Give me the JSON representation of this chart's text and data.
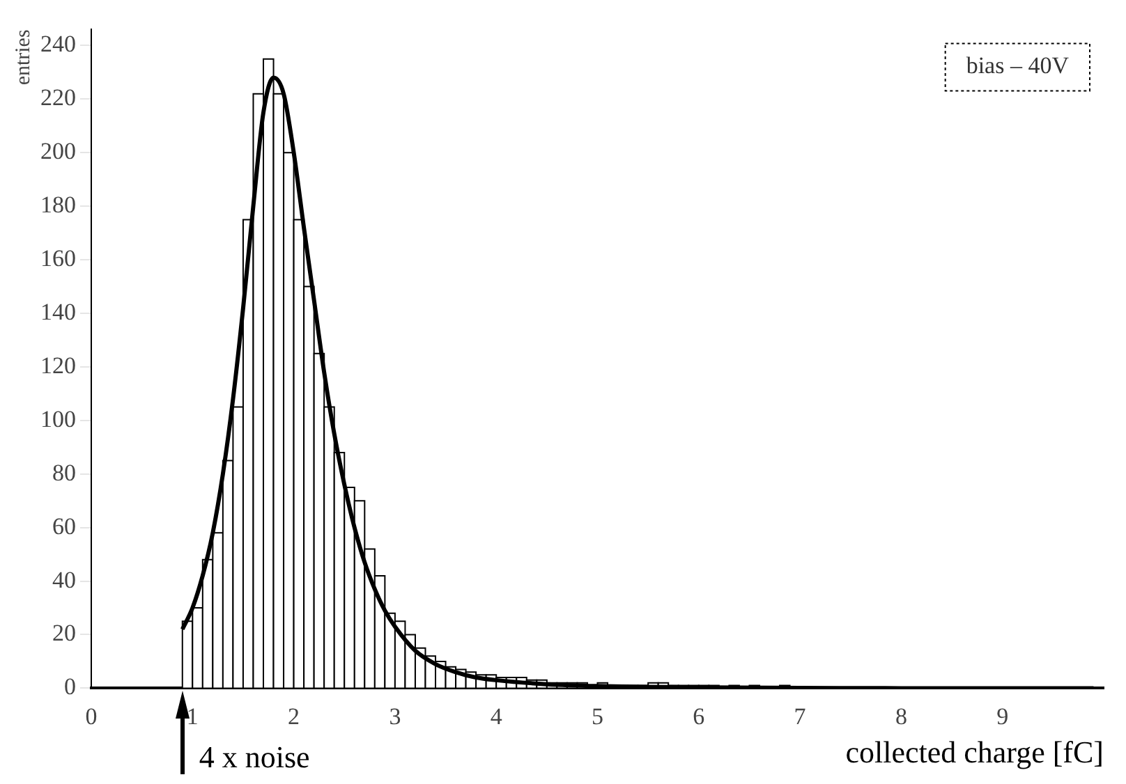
{
  "chart_data": {
    "type": "histogram",
    "xlabel": "collected charge [fC]",
    "ylabel": "entries",
    "bins": [
      0.9,
      1.0,
      1.1,
      1.2,
      1.3,
      1.4,
      1.5,
      1.6,
      1.7,
      1.8,
      1.9,
      2.0,
      2.1,
      2.2,
      2.3,
      2.4,
      2.5,
      2.6,
      2.7,
      2.8,
      2.9,
      3.0,
      3.1,
      3.2,
      3.3,
      3.4,
      3.5,
      3.6,
      3.7,
      3.8,
      3.9,
      4.0,
      4.1,
      4.2,
      4.3,
      4.4,
      4.5,
      4.6,
      4.7,
      4.8,
      4.9,
      5.0,
      5.1,
      5.2,
      5.3,
      5.4,
      5.5,
      5.6,
      5.7,
      5.8,
      5.9,
      6.0,
      6.1,
      6.2,
      6.3,
      6.4,
      6.5,
      6.6,
      6.7,
      6.8,
      6.9,
      7.0
    ],
    "values": [
      25,
      30,
      48,
      58,
      85,
      105,
      175,
      222,
      235,
      222,
      200,
      175,
      150,
      125,
      105,
      88,
      75,
      70,
      52,
      42,
      28,
      25,
      20,
      15,
      12,
      10,
      8,
      7,
      6,
      5,
      5,
      4,
      4,
      4,
      3,
      3,
      2,
      2,
      2,
      2,
      1,
      2,
      1,
      1,
      1,
      1,
      2,
      2,
      1,
      1,
      1,
      1,
      1,
      0,
      1,
      0,
      1,
      0,
      0,
      1,
      0
    ],
    "color": "#000000",
    "series": [
      {
        "type": "line",
        "color": "#000000",
        "x": [
          0.9,
          1.0,
          1.1,
          1.2,
          1.3,
          1.4,
          1.5,
          1.6,
          1.7,
          1.8,
          1.9,
          2.0,
          2.1,
          2.2,
          2.3,
          2.4,
          2.5,
          2.6,
          2.7,
          2.8,
          2.9,
          3.0,
          3.2,
          3.4,
          3.6,
          3.8,
          4.0,
          4.5,
          5.0,
          6.0,
          7.0,
          8.0,
          9.9
        ],
        "values": [
          22,
          30,
          42,
          58,
          80,
          108,
          142,
          180,
          215,
          228,
          222,
          200,
          172,
          145,
          118,
          95,
          76,
          60,
          47,
          37,
          29,
          23,
          14,
          9,
          6,
          4,
          3,
          1.5,
          0.8,
          0.3,
          0.1,
          0,
          0
        ]
      }
    ],
    "xlim": [
      0,
      10
    ],
    "xticks": [
      0,
      1,
      2,
      3,
      4,
      5,
      6,
      7,
      8,
      9
    ],
    "ylim": [
      0,
      246
    ],
    "yticks": [
      0,
      20,
      40,
      60,
      80,
      100,
      120,
      140,
      160,
      180,
      200,
      220,
      240
    ],
    "grid": false,
    "legend": false,
    "annotations": [
      "bias – 40V",
      "4 x noise"
    ]
  }
}
